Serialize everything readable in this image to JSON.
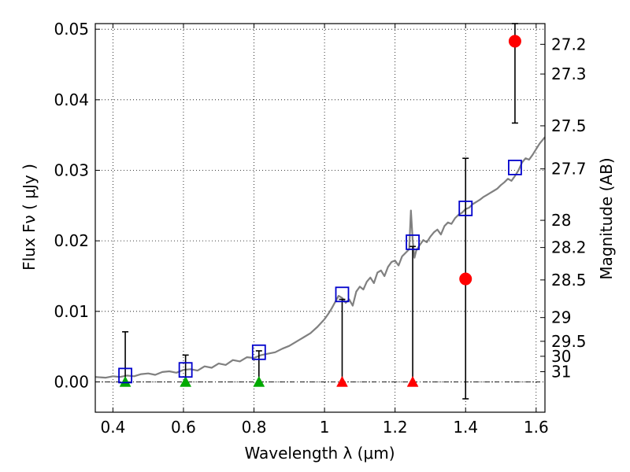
{
  "chart_data": {
    "type": "scatter",
    "xlabel": "Wavelength  λ (μm)",
    "ylabel": "Flux  Fν  ( μJy )",
    "ylabel_right": "Magnitude (AB)",
    "xlim": [
      0.35,
      1.625
    ],
    "ylim": [
      -0.0043,
      0.0508
    ],
    "x_ticks": [
      0.4,
      0.6,
      0.8,
      1.0,
      1.2,
      1.4,
      1.6
    ],
    "x_tick_labels": [
      "0.4",
      "0.6",
      "0.8",
      "1",
      "1.2",
      "1.4",
      "1.6"
    ],
    "y_ticks": [
      0.0,
      0.01,
      0.02,
      0.03,
      0.04,
      0.05
    ],
    "y_tick_labels": [
      "0.00",
      "0.01",
      "0.02",
      "0.03",
      "0.04",
      "0.05"
    ],
    "mag_ticks": [
      27.2,
      27.3,
      27.5,
      27.7,
      28,
      28.2,
      28.5,
      29,
      29.5,
      30,
      31
    ],
    "mag_tick_labels": [
      "27.2",
      "27.3",
      "27.5",
      "27.7",
      "28",
      "28.2",
      "28.5",
      "29",
      "29.5",
      "30",
      "31"
    ],
    "grid": true,
    "colors": {
      "model": "#808080",
      "model_photometry": "#0000cc",
      "detection": "#ff0000",
      "upper_limit_red": "#ff0000",
      "upper_limit_green": "#00aa00",
      "errorbar": "#000000"
    },
    "series": [
      {
        "name": "model spectrum",
        "kind": "line",
        "x": [
          0.35,
          0.38,
          0.4,
          0.42,
          0.44,
          0.46,
          0.48,
          0.5,
          0.52,
          0.54,
          0.56,
          0.58,
          0.6,
          0.62,
          0.64,
          0.66,
          0.68,
          0.7,
          0.72,
          0.74,
          0.76,
          0.78,
          0.8,
          0.82,
          0.84,
          0.86,
          0.88,
          0.9,
          0.92,
          0.94,
          0.96,
          0.98,
          1.0,
          1.01,
          1.02,
          1.03,
          1.04,
          1.05,
          1.06,
          1.07,
          1.08,
          1.09,
          1.1,
          1.11,
          1.12,
          1.13,
          1.14,
          1.15,
          1.16,
          1.17,
          1.18,
          1.19,
          1.2,
          1.21,
          1.22,
          1.23,
          1.24,
          1.245,
          1.25,
          1.255,
          1.26,
          1.27,
          1.28,
          1.29,
          1.3,
          1.31,
          1.32,
          1.33,
          1.34,
          1.35,
          1.36,
          1.37,
          1.38,
          1.39,
          1.4,
          1.41,
          1.42,
          1.43,
          1.44,
          1.45,
          1.46,
          1.47,
          1.48,
          1.49,
          1.5,
          1.51,
          1.52,
          1.53,
          1.54,
          1.55,
          1.56,
          1.57,
          1.58,
          1.59,
          1.6,
          1.61,
          1.625
        ],
        "y": [
          0.0007,
          0.0006,
          0.0008,
          0.0007,
          0.0009,
          0.0008,
          0.0011,
          0.0012,
          0.001,
          0.0014,
          0.0015,
          0.0013,
          0.0017,
          0.0018,
          0.0016,
          0.0022,
          0.002,
          0.0026,
          0.0024,
          0.0031,
          0.0029,
          0.0035,
          0.0034,
          0.0038,
          0.004,
          0.0042,
          0.0047,
          0.0051,
          0.0057,
          0.0063,
          0.0069,
          0.0078,
          0.0089,
          0.0096,
          0.0104,
          0.0113,
          0.0122,
          0.0119,
          0.0112,
          0.0117,
          0.0108,
          0.0128,
          0.0135,
          0.0131,
          0.0142,
          0.0148,
          0.014,
          0.0155,
          0.0158,
          0.015,
          0.0163,
          0.017,
          0.0172,
          0.0165,
          0.0178,
          0.0183,
          0.0188,
          0.0243,
          0.02,
          0.0176,
          0.0186,
          0.0194,
          0.0201,
          0.0198,
          0.0206,
          0.0212,
          0.0216,
          0.0209,
          0.0221,
          0.0226,
          0.0224,
          0.0232,
          0.0237,
          0.024,
          0.0245,
          0.0247,
          0.0252,
          0.0255,
          0.0258,
          0.0262,
          0.0265,
          0.0268,
          0.0271,
          0.0274,
          0.0279,
          0.0283,
          0.0288,
          0.0285,
          0.0292,
          0.03,
          0.0311,
          0.0317,
          0.0315,
          0.0322,
          0.033,
          0.0338,
          0.0347
        ]
      },
      {
        "name": "model photometry",
        "kind": "square",
        "x": [
          0.435,
          0.606,
          0.814,
          1.05,
          1.25,
          1.4,
          1.54
        ],
        "y": [
          0.0009,
          0.0017,
          0.0042,
          0.0124,
          0.0198,
          0.0246,
          0.0304
        ]
      },
      {
        "name": "detections",
        "kind": "circle",
        "x": [
          1.4,
          1.54
        ],
        "y": [
          0.0146,
          0.0483
        ],
        "err_low": [
          0.017,
          0.0116
        ],
        "err_high": [
          0.0171,
          0.003
        ]
      },
      {
        "name": "upper limits (optical)",
        "kind": "triangle",
        "color": "green",
        "x": [
          0.435,
          0.606,
          0.814
        ],
        "y": [
          0.0,
          0.0,
          0.0
        ],
        "err_high": [
          0.0071,
          0.0038,
          0.0044
        ]
      },
      {
        "name": "upper limits (near-IR)",
        "kind": "triangle",
        "color": "red",
        "x": [
          1.05,
          1.25
        ],
        "y": [
          0.0,
          0.0
        ],
        "err_high": [
          0.0117,
          0.0192
        ]
      }
    ]
  }
}
